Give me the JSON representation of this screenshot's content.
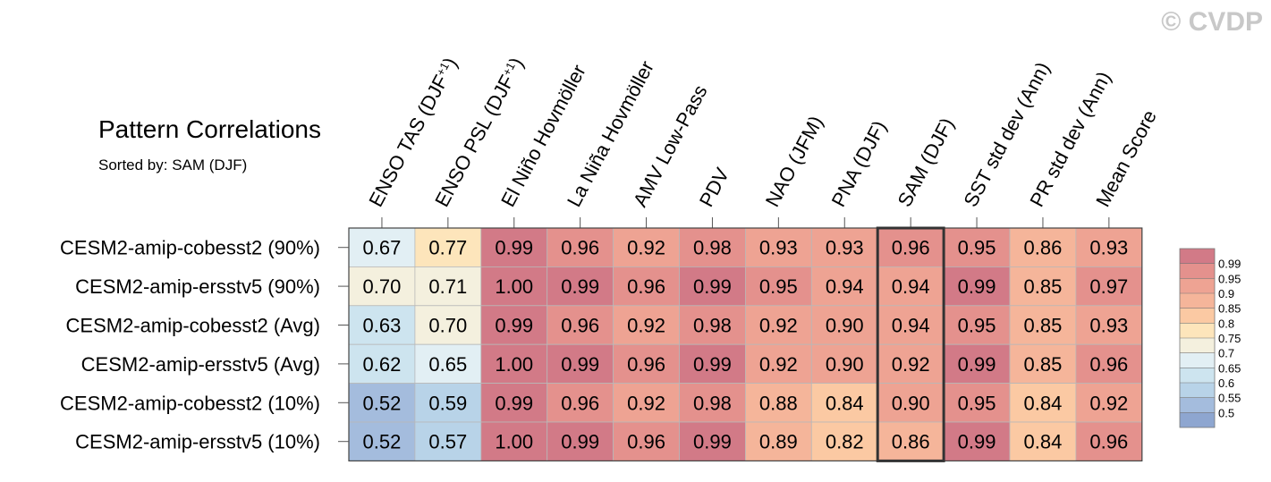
{
  "copyright": "© CVDP",
  "chart_data": {
    "type": "heatmap",
    "title": "Pattern Correlations",
    "subtitle": "Sorted by: SAM (DJF)",
    "highlight_column": "SAM (DJF)",
    "columns": [
      {
        "label": "ENSO TAS (DJF",
        "sup": "+1",
        "close": ")"
      },
      {
        "label": "ENSO PSL (DJF",
        "sup": "+1",
        "close": ")"
      },
      {
        "label": "El Niño Hovmöller"
      },
      {
        "label": "La Niña Hovmöller"
      },
      {
        "label": "AMV Low-Pass"
      },
      {
        "label": "PDV"
      },
      {
        "label": "NAO (JFM)"
      },
      {
        "label": "PNA (DJF)"
      },
      {
        "label": "SAM (DJF)"
      },
      {
        "label": "SST std dev (Ann)"
      },
      {
        "label": "PR std dev (Ann)"
      },
      {
        "label": "Mean Score"
      }
    ],
    "rows": [
      "CESM2-amip-cobesst2 (90%)",
      "CESM2-amip-ersstv5 (90%)",
      "CESM2-amip-cobesst2 (Avg)",
      "CESM2-amip-ersstv5 (Avg)",
      "CESM2-amip-cobesst2 (10%)",
      "CESM2-amip-ersstv5 (10%)"
    ],
    "values": [
      [
        "0.67",
        "0.77",
        "0.99",
        "0.96",
        "0.92",
        "0.98",
        "0.93",
        "0.93",
        "0.96",
        "0.95",
        "0.86",
        "0.93"
      ],
      [
        "0.70",
        "0.71",
        "1.00",
        "0.99",
        "0.96",
        "0.99",
        "0.95",
        "0.94",
        "0.94",
        "0.99",
        "0.85",
        "0.97"
      ],
      [
        "0.63",
        "0.70",
        "0.99",
        "0.96",
        "0.92",
        "0.98",
        "0.92",
        "0.90",
        "0.94",
        "0.95",
        "0.85",
        "0.93"
      ],
      [
        "0.62",
        "0.65",
        "1.00",
        "0.99",
        "0.96",
        "0.99",
        "0.92",
        "0.90",
        "0.92",
        "0.99",
        "0.85",
        "0.96"
      ],
      [
        "0.52",
        "0.59",
        "0.99",
        "0.96",
        "0.92",
        "0.98",
        "0.88",
        "0.84",
        "0.90",
        "0.95",
        "0.84",
        "0.92"
      ],
      [
        "0.52",
        "0.57",
        "1.00",
        "0.99",
        "0.96",
        "0.99",
        "0.89",
        "0.82",
        "0.86",
        "0.99",
        "0.84",
        "0.96"
      ]
    ],
    "colorbar": {
      "levels": [
        "0.99",
        "0.95",
        "0.9",
        "0.85",
        "0.8",
        "0.75",
        "0.7",
        "0.65",
        "0.6",
        "0.55",
        "0.5"
      ],
      "colors": [
        "#d27a87",
        "#e4918d",
        "#eea393",
        "#f5b59a",
        "#fbc9a3",
        "#fde5bb",
        "#f4f0de",
        "#e2eff4",
        "#cde4ef",
        "#b8d3e8",
        "#a4bcdd",
        "#8ea6d0"
      ]
    }
  }
}
